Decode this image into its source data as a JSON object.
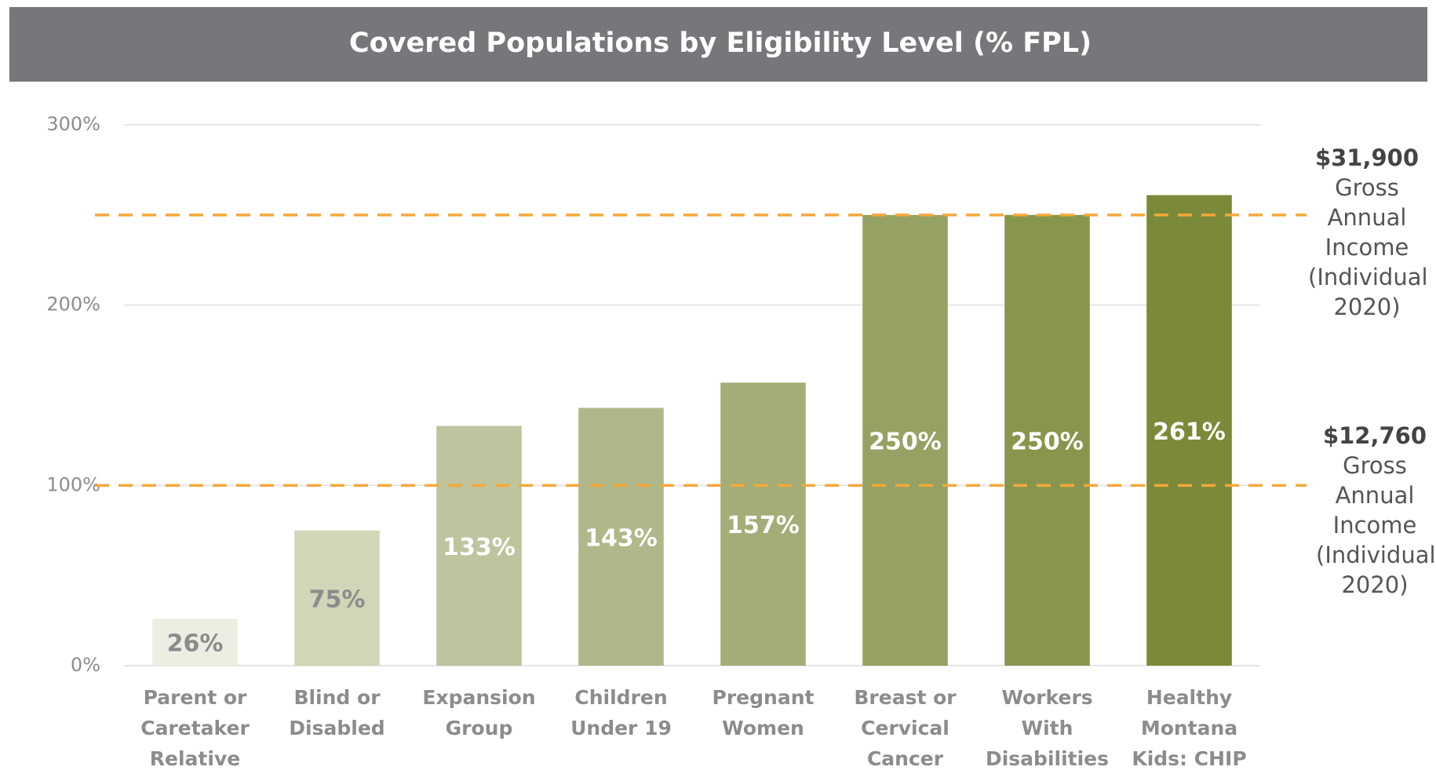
{
  "chart_data": {
    "type": "bar",
    "title": "Covered Populations by Eligibility Level (% FPL)",
    "categories": [
      "Parent or Caretaker Relative",
      "Blind or Disabled",
      "Expansion Group",
      "Children Under 19",
      "Pregnant Women",
      "Breast or Cervical Cancer",
      "Workers With Disabilities",
      "Healthy Montana Kids: CHIP"
    ],
    "values": [
      26,
      75,
      133,
      143,
      157,
      250,
      250,
      261
    ],
    "value_labels": [
      "26%",
      "75%",
      "133%",
      "143%",
      "157%",
      "250%",
      "250%",
      "261%"
    ],
    "colors": [
      "#eceee2",
      "#d1d6b8",
      "#bec49e",
      "#afb88a",
      "#a3ad78",
      "#95a263",
      "#88964d",
      "#7b8a38"
    ],
    "label_colors": [
      "#8c8c8c",
      "#8c8c8c",
      "#ffffff",
      "#ffffff",
      "#ffffff",
      "#ffffff",
      "#ffffff",
      "#ffffff"
    ],
    "ylim": [
      0,
      300
    ],
    "yticks": [
      {
        "value": 0,
        "label": "0%"
      },
      {
        "value": 100,
        "label": "100%"
      },
      {
        "value": 200,
        "label": "200%"
      },
      {
        "value": 300,
        "label": "300%"
      }
    ],
    "grid": true,
    "reference_line_color": "#f5a83a",
    "annotations": [
      {
        "value": 250,
        "label": "$31,900",
        "text": "Gross Annual Income (Individual 2020)"
      },
      {
        "value": 100,
        "label": "$12,760",
        "text": "Gross Annual Income (Individual 2020)"
      }
    ]
  }
}
